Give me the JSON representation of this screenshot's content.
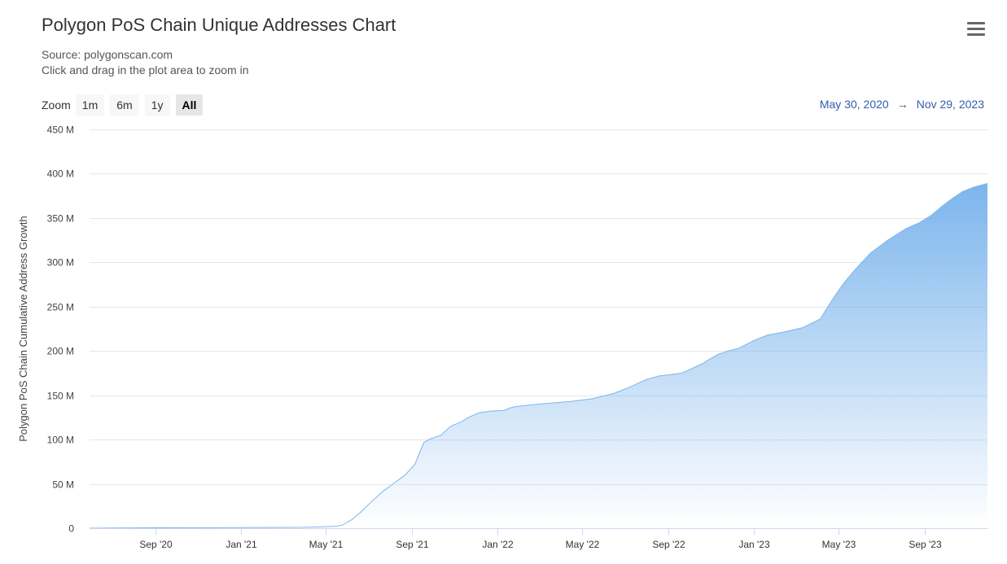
{
  "header": {
    "title": "Polygon PoS Chain Unique Addresses Chart",
    "source": "Source: polygonscan.com",
    "hint": "Click and drag in the plot area to zoom in",
    "menu_icon": "hamburger-menu-icon"
  },
  "zoom": {
    "label": "Zoom",
    "buttons": [
      "1m",
      "6m",
      "1y",
      "All"
    ],
    "active": "All"
  },
  "range": {
    "from": "May 30, 2020",
    "arrow": "→",
    "to": "Nov 29, 2023"
  },
  "colors": {
    "line": "#7cb5ec",
    "fill_top": "#7cb5ec",
    "grid": "#e6e6e6"
  },
  "chart_data": {
    "type": "area",
    "title": "Polygon PoS Chain Unique Addresses Chart",
    "subtitle": "Source: polygonscan.com",
    "xlabel": "",
    "ylabel": "Polygon PoS Chain Cumulative Address Growth",
    "xlim": [
      "2020-05-30",
      "2023-11-29"
    ],
    "ylim": [
      0,
      450000000
    ],
    "grid": true,
    "legend": "none",
    "y_ticks": [
      "0",
      "50 M",
      "100 M",
      "150 M",
      "200 M",
      "250 M",
      "300 M",
      "350 M",
      "400 M",
      "450 M"
    ],
    "y_tick_values": [
      0,
      50000000,
      100000000,
      150000000,
      200000000,
      250000000,
      300000000,
      350000000,
      400000000,
      450000000
    ],
    "x_ticks": [
      {
        "label": "Sep '20",
        "date": "2020-09-01"
      },
      {
        "label": "Jan '21",
        "date": "2021-01-01"
      },
      {
        "label": "May '21",
        "date": "2021-05-01"
      },
      {
        "label": "Sep '21",
        "date": "2021-09-01"
      },
      {
        "label": "Jan '22",
        "date": "2022-01-01"
      },
      {
        "label": "May '22",
        "date": "2022-05-01"
      },
      {
        "label": "Sep '22",
        "date": "2022-09-01"
      },
      {
        "label": "Jan '23",
        "date": "2023-01-01"
      },
      {
        "label": "May '23",
        "date": "2023-05-01"
      },
      {
        "label": "Sep '23",
        "date": "2023-09-01"
      }
    ],
    "series": [
      {
        "x": [
          "2020-05-30",
          "2020-09-01",
          "2021-01-01",
          "2021-04-01",
          "2021-05-15",
          "2021-05-25",
          "2021-06-08",
          "2021-06-20",
          "2021-07-08",
          "2021-07-22",
          "2021-08-05",
          "2021-08-22",
          "2021-09-05",
          "2021-09-18",
          "2021-09-28",
          "2021-10-12",
          "2021-10-26",
          "2021-11-10",
          "2021-11-20",
          "2021-12-05",
          "2021-12-20",
          "2022-01-10",
          "2022-01-20",
          "2022-01-25",
          "2022-02-15",
          "2022-03-15",
          "2022-04-15",
          "2022-05-15",
          "2022-06-15",
          "2022-07-10",
          "2022-08-01",
          "2022-08-20",
          "2022-09-01",
          "2022-09-20",
          "2022-10-20",
          "2022-10-28",
          "2022-11-10",
          "2022-11-25",
          "2022-12-10",
          "2023-01-01",
          "2023-01-20",
          "2023-02-10",
          "2023-03-10",
          "2023-04-05",
          "2023-04-20",
          "2023-05-01",
          "2023-05-10",
          "2023-05-25",
          "2023-06-15",
          "2023-07-10",
          "2023-08-05",
          "2023-08-25",
          "2023-09-10",
          "2023-09-25",
          "2023-10-10",
          "2023-10-25",
          "2023-11-10",
          "2023-11-29"
        ],
        "values": [
          0,
          500000,
          700000,
          1000000,
          2000000,
          3500000,
          10000000,
          18000000,
          32000000,
          42000000,
          50000000,
          60000000,
          72000000,
          97000000,
          101000000,
          105000000,
          115000000,
          120000000,
          125000000,
          130000000,
          132000000,
          133000000,
          136000000,
          137000000,
          139000000,
          141000000,
          143000000,
          146000000,
          152000000,
          160000000,
          168000000,
          172000000,
          173000000,
          175000000,
          186000000,
          190000000,
          196000000,
          200000000,
          203000000,
          212000000,
          218000000,
          221000000,
          226000000,
          236000000,
          255000000,
          268000000,
          278000000,
          292000000,
          310000000,
          325000000,
          338000000,
          345000000,
          353000000,
          363000000,
          372000000,
          380000000,
          385000000,
          389000000
        ]
      }
    ]
  }
}
